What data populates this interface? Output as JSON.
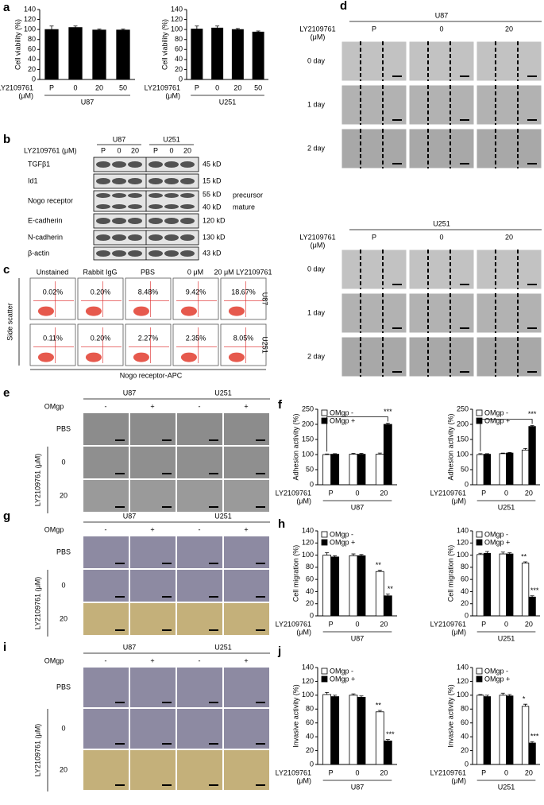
{
  "letters": [
    "a",
    "b",
    "c",
    "d",
    "e",
    "f",
    "g",
    "h",
    "i",
    "j"
  ],
  "chart_data": [
    {
      "type": "bar",
      "ylabel": "Cell viability (%)",
      "categories": [
        "P",
        "0",
        "20",
        "50"
      ],
      "values": [
        100,
        104,
        99,
        99
      ],
      "errors": [
        7,
        3,
        2,
        2
      ],
      "color": "#000000",
      "ylim": [
        0,
        140
      ],
      "yticks": [
        0,
        20,
        40,
        60,
        80,
        100,
        120,
        140
      ],
      "xlabel": [
        "LY2109761",
        "(μM)"
      ],
      "group": "U87"
    },
    {
      "type": "bar",
      "ylabel": "Cell viability (%)",
      "categories": [
        "P",
        "0",
        "20",
        "50"
      ],
      "values": [
        101,
        103,
        100,
        95
      ],
      "errors": [
        6,
        4,
        2,
        2
      ],
      "color": "#000000",
      "ylim": [
        0,
        140
      ],
      "yticks": [
        0,
        20,
        40,
        60,
        80,
        100,
        120,
        140
      ],
      "xlabel": [
        "LY2109761",
        "(μM)"
      ],
      "group": "U251"
    },
    {
      "type": "bar",
      "ylabel": "Adhesion activity (%)",
      "categories": [
        "P",
        "0",
        "20"
      ],
      "series": [
        {
          "name": "OMgp -",
          "color": "#ffffff",
          "values": [
            100,
            101,
            101
          ],
          "errors": [
            2,
            3,
            4
          ]
        },
        {
          "name": "OMgp +",
          "color": "#000000",
          "values": [
            101,
            101,
            200
          ],
          "errors": [
            2,
            3,
            4
          ]
        }
      ],
      "ylim": [
        0,
        250
      ],
      "yticks": [
        0,
        50,
        100,
        150,
        200,
        250
      ],
      "xlabel": [
        "LY2109761",
        "(μM)"
      ],
      "group": "U87",
      "annotations": [
        "***"
      ]
    },
    {
      "type": "bar",
      "ylabel": "Adhesion activity (%)",
      "categories": [
        "P",
        "0",
        "20"
      ],
      "series": [
        {
          "name": "OMgp -",
          "color": "#ffffff",
          "values": [
            100,
            103,
            115
          ],
          "errors": [
            3,
            2,
            5
          ]
        },
        {
          "name": "OMgp +",
          "color": "#000000",
          "values": [
            101,
            105,
            193
          ],
          "errors": [
            2,
            2,
            3
          ]
        }
      ],
      "ylim": [
        0,
        250
      ],
      "yticks": [
        0,
        50,
        100,
        150,
        200,
        250
      ],
      "xlabel": [
        "LY2109761",
        "(μM)"
      ],
      "group": "U251",
      "annotations": [
        "***"
      ]
    },
    {
      "type": "bar",
      "ylabel": "Cell migration (%)",
      "categories": [
        "P",
        "0",
        "20"
      ],
      "series": [
        {
          "name": "OMgp -",
          "color": "#ffffff",
          "values": [
            100,
            99,
            73
          ],
          "errors": [
            4,
            3,
            2
          ]
        },
        {
          "name": "OMgp +",
          "color": "#000000",
          "values": [
            97,
            99,
            33
          ],
          "errors": [
            2,
            2,
            3
          ]
        }
      ],
      "ylim": [
        0,
        140
      ],
      "yticks": [
        0,
        20,
        40,
        60,
        80,
        100,
        120,
        140
      ],
      "xlabel": [
        "LY2109761",
        "(μM)"
      ],
      "group": "U87",
      "annotations": [
        "**",
        "**"
      ]
    },
    {
      "type": "bar",
      "ylabel": "Cell migration (%)",
      "categories": [
        "P",
        "0",
        "20"
      ],
      "series": [
        {
          "name": "OMgp -",
          "color": "#ffffff",
          "values": [
            101,
            102,
            87
          ],
          "errors": [
            2,
            3,
            2
          ]
        },
        {
          "name": "OMgp +",
          "color": "#000000",
          "values": [
            103,
            102,
            31
          ],
          "errors": [
            3,
            2,
            2
          ]
        }
      ],
      "ylim": [
        0,
        140
      ],
      "yticks": [
        0,
        20,
        40,
        60,
        80,
        100,
        120,
        140
      ],
      "xlabel": [
        "LY2109761",
        "(μM)"
      ],
      "group": "U251",
      "annotations": [
        "**",
        "***"
      ]
    },
    {
      "type": "bar",
      "ylabel": "Invasive activity (%)",
      "categories": [
        "P",
        "0",
        "20"
      ],
      "series": [
        {
          "name": "OMgp -",
          "color": "#ffffff",
          "values": [
            101,
            100,
            76
          ],
          "errors": [
            3,
            2,
            2
          ]
        },
        {
          "name": "OMgp +",
          "color": "#000000",
          "values": [
            98,
            97,
            34
          ],
          "errors": [
            2,
            2,
            2
          ]
        }
      ],
      "ylim": [
        0,
        140
      ],
      "yticks": [
        0,
        20,
        40,
        60,
        80,
        100,
        120,
        140
      ],
      "xlabel": [
        "LY2109761",
        "(μM)"
      ],
      "group": "U87",
      "annotations": [
        "**",
        "***"
      ]
    },
    {
      "type": "bar",
      "ylabel": "Invasive activity (%)",
      "categories": [
        "P",
        "0",
        "20"
      ],
      "series": [
        {
          "name": "OMgp -",
          "color": "#ffffff",
          "values": [
            100,
            100,
            84
          ],
          "errors": [
            1,
            3,
            3
          ]
        },
        {
          "name": "OMgp +",
          "color": "#000000",
          "values": [
            98,
            99,
            31
          ],
          "errors": [
            2,
            2,
            2
          ]
        }
      ],
      "ylim": [
        0,
        140
      ],
      "yticks": [
        0,
        20,
        40,
        60,
        80,
        100,
        120,
        140
      ],
      "xlabel": [
        "LY2109761",
        "(μM)"
      ],
      "group": "U251",
      "annotations": [
        "*",
        "***"
      ]
    }
  ],
  "blot": {
    "treatment": "LY2109761 (μM)",
    "cells": [
      "U87",
      "U251"
    ],
    "lanes": [
      "P",
      "0",
      "20",
      "P",
      "0",
      "20"
    ],
    "rows": [
      "TGFβ1",
      "Id1",
      "Nogo receptor",
      "E-cadherin",
      "N-cadherin",
      "β-actin"
    ],
    "sizes": [
      [
        "45 kD"
      ],
      [
        "15 kD"
      ],
      [
        "55 kD",
        "40 kD"
      ],
      [
        "120 kD"
      ],
      [
        "130 kD"
      ],
      [
        "43 kD"
      ]
    ],
    "forms": [
      "precursor",
      "mature"
    ]
  },
  "flow": {
    "columns": [
      "Unstained",
      "Rabbit IgG",
      "PBS",
      "0 μM",
      "20 μM LY2109761"
    ],
    "rows": [
      {
        "name": "U87",
        "percents": [
          "0.02%",
          "0.20%",
          "8.48%",
          "9.42%",
          "18.67%"
        ]
      },
      {
        "name": "U251",
        "percents": [
          "0.11%",
          "0.20%",
          "2.27%",
          "2.35%",
          "8.05%"
        ]
      }
    ],
    "ylabel": "Side scatter",
    "xlabel": "Nogo receptor-APC"
  },
  "wound": [
    {
      "cell": "U87",
      "treatment": [
        "LY2109761",
        "(μM)"
      ],
      "columns": [
        "P",
        "0",
        "20"
      ],
      "rows": [
        "0 day",
        "1 day",
        "2 day"
      ]
    },
    {
      "cell": "U251",
      "treatment": [
        "LY2109761",
        "(μM)"
      ],
      "columns": [
        "P",
        "0",
        "20"
      ],
      "rows": [
        "0 day",
        "1 day",
        "2 day"
      ]
    }
  ],
  "cell_images": [
    {
      "cells": [
        "U87",
        "U251"
      ],
      "factor": "OMgp",
      "signs": [
        "-",
        "+",
        "-",
        "+"
      ],
      "rows": [
        "PBS",
        "0",
        "20"
      ],
      "treatment": "LY2109761 (μM)"
    },
    {
      "cells": [
        "U87",
        "U251"
      ],
      "factor": "OMgp",
      "signs": [
        "-",
        "+",
        "-",
        "+"
      ],
      "rows": [
        "PBS",
        "0",
        "20"
      ],
      "treatment": "LY2109761 (μM)"
    },
    {
      "cells": [
        "U87",
        "U251"
      ],
      "factor": "OMgp",
      "signs": [
        "-",
        "+",
        "-",
        "+"
      ],
      "rows": [
        "PBS",
        "0",
        "20"
      ],
      "treatment": "LY2109761 (μM)"
    }
  ]
}
